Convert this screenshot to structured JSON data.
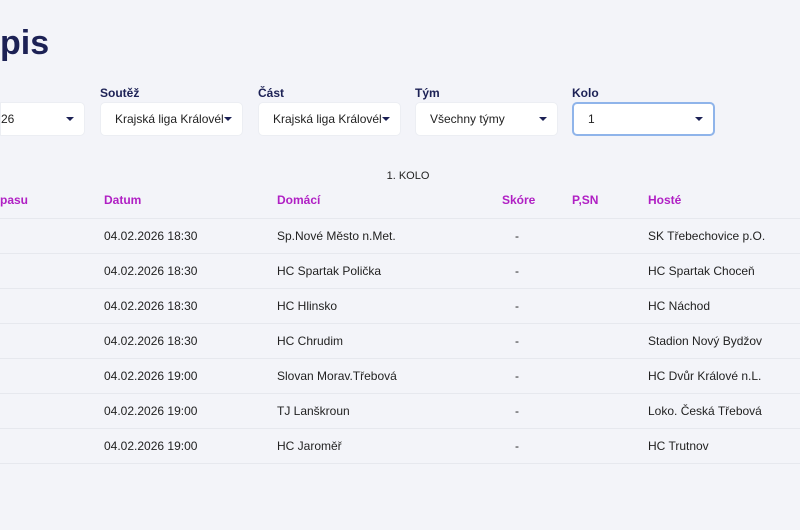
{
  "page": {
    "title": "pis"
  },
  "filters": [
    {
      "label": "",
      "value": "26"
    },
    {
      "label": "Soutěž",
      "value": "Krajská liga Královél"
    },
    {
      "label": "Část",
      "value": "Krajská liga Královél"
    },
    {
      "label": "Tým",
      "value": "Všechny týmy"
    },
    {
      "label": "Kolo",
      "value": "1"
    }
  ],
  "round_title": "1. KOLO",
  "table": {
    "columns": [
      "pasu",
      "Datum",
      "Domácí",
      "Skóre",
      "P,SN",
      "Hosté"
    ],
    "rows": [
      {
        "date": "04.02.2026 18:30",
        "home": "Sp.Nové Město n.Met.",
        "score": "-",
        "psn": "",
        "away": "SK Třebechovice p.O."
      },
      {
        "date": "04.02.2026 18:30",
        "home": "HC Spartak Polička",
        "score": "-",
        "psn": "",
        "away": "HC Spartak Choceň"
      },
      {
        "date": "04.02.2026 18:30",
        "home": "HC Hlinsko",
        "score": "-",
        "psn": "",
        "away": "HC Náchod"
      },
      {
        "date": "04.02.2026 18:30",
        "home": "HC Chrudim",
        "score": "-",
        "psn": "",
        "away": "Stadion Nový Bydžov"
      },
      {
        "date": "04.02.2026 19:00",
        "home": "Slovan Morav.Třebová",
        "score": "-",
        "psn": "",
        "away": "HC Dvůr Králové n.L."
      },
      {
        "date": "04.02.2026 19:00",
        "home": "TJ Lanškroun",
        "score": "-",
        "psn": "",
        "away": "Loko. Česká Třebová"
      },
      {
        "date": "04.02.2026 19:00",
        "home": "HC Jaroměř",
        "score": "-",
        "psn": "",
        "away": "HC Trutnov"
      }
    ]
  },
  "colors": {
    "title": "#1c2155",
    "header": "#b01fc4",
    "focus_border": "#8fb4ea",
    "background": "#f3f4f9"
  }
}
